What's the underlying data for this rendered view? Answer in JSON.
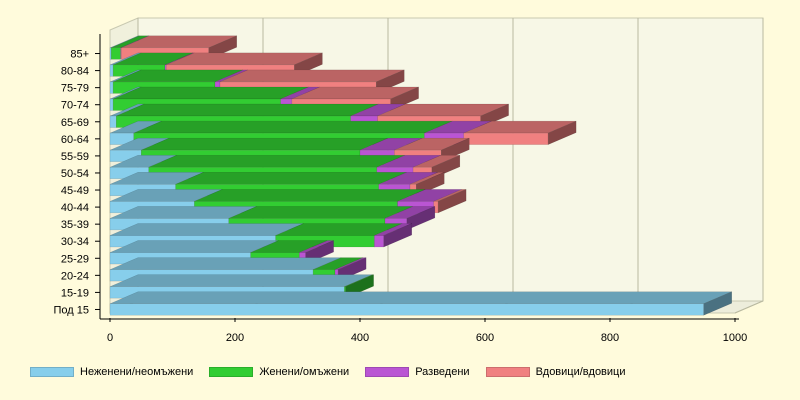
{
  "chart_data": {
    "type": "bar",
    "orientation": "horizontal",
    "stacked": true,
    "three_d": true,
    "categories": [
      "85+",
      "80-84",
      "75-79",
      "70-74",
      "65-69",
      "60-64",
      "55-59",
      "50-54",
      "45-49",
      "40-44",
      "35-39",
      "30-34",
      "25-29",
      "20-24",
      "15-19",
      "Под 15"
    ],
    "series": [
      {
        "name": "Неженени/неомъжени",
        "color": "#87ceeb",
        "values": [
          2,
          5,
          5,
          5,
          10,
          38,
          50,
          62,
          105,
          135,
          190,
          265,
          225,
          325,
          375,
          950
        ]
      },
      {
        "name": "Женени/омъжени",
        "color": "#32cd32",
        "values": [
          15,
          83,
          163,
          268,
          375,
          465,
          350,
          365,
          325,
          325,
          250,
          158,
          78,
          35,
          2,
          0
        ]
      },
      {
        "name": "Разведени",
        "color": "#ba55d3",
        "values": [
          1,
          2,
          8,
          18,
          43,
          63,
          55,
          58,
          50,
          58,
          35,
          15,
          10,
          5,
          0,
          0
        ]
      },
      {
        "name": "Вдовици/вдовици",
        "color": "#f08080",
        "values": [
          140,
          205,
          250,
          158,
          165,
          135,
          75,
          30,
          10,
          7,
          0,
          0,
          0,
          0,
          0,
          0
        ]
      }
    ],
    "xlim": [
      0,
      1000
    ],
    "xticks": [
      "0",
      "200",
      "400",
      "600",
      "800",
      "1000"
    ],
    "grid": true,
    "legend_position": "bottom"
  }
}
